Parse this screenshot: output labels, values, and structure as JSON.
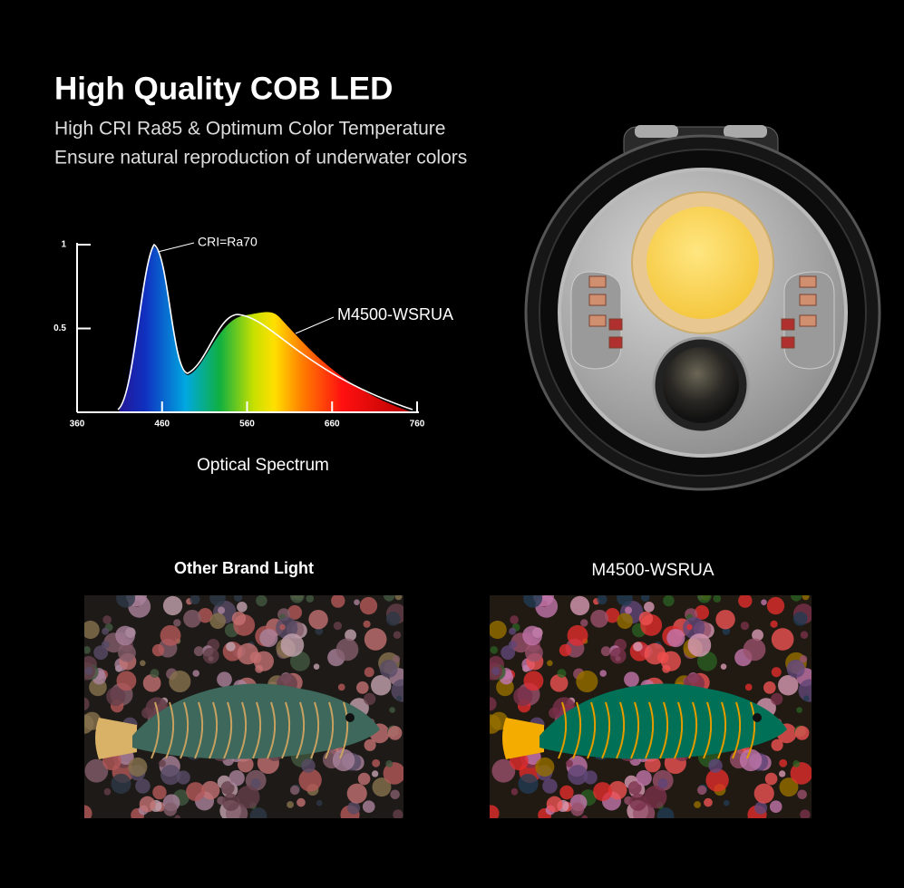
{
  "header": {
    "title": "High Quality COB LED",
    "subtitle_lines": [
      "High CRI Ra85 & Optimum Color Temperature",
      "Ensure natural reproduction of underwater colors"
    ]
  },
  "spectrum": {
    "xlim": [
      360,
      760
    ],
    "ylim": [
      0,
      1
    ],
    "xticks": [
      360,
      460,
      560,
      660,
      760
    ],
    "yticks": [
      0.5,
      1
    ],
    "annotations": [
      "CRI=Ra70",
      "M4500-WSRUA"
    ],
    "caption": "Optical Spectrum"
  },
  "comparison": [
    {
      "label": "Other Brand Light"
    },
    {
      "label": "M4500-WSRUA"
    }
  ]
}
